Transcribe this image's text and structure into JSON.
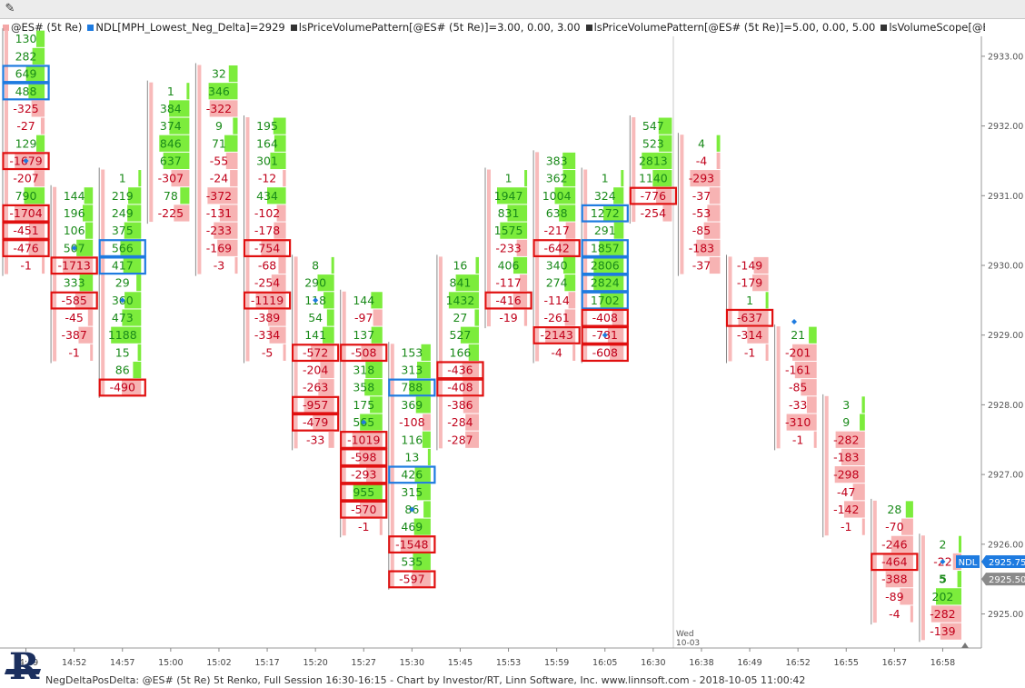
{
  "toolbar": {
    "icon": "pencil-icon"
  },
  "legend": [
    {
      "text": "@ES# (5t Re)",
      "color": "#f4a7a7"
    },
    {
      "text": "NDL[MPH_Lowest_Neg_Delta]=2929",
      "color": "#1e7be0"
    },
    {
      "text": "lsPriceVolumePattern[@ES# (5t Re)]=3.00, 0.00, 3.00",
      "color": "#333333"
    },
    {
      "text": "lsPriceVolumePattern[@ES# (5t Re)]=5.00, 0.00, 5.00",
      "color": "#333333"
    },
    {
      "text": "lsVolumeScope[@ES# (5t Re)]=2931.25, 2928.75, 0, 0",
      "color": "#333333"
    }
  ],
  "footer": "NegDeltaPosDelta: @ES# (5t Re) 5t Renko, Full Session 16:30-16:15 - Chart by Investor/RT, Linn Software, Inc. www.linnsoft.com - 2018-10-05 11:00:42",
  "day_label": {
    "line1": "Wed",
    "line2": "10-03"
  },
  "colors": {
    "pos": "#1a8a1a",
    "neg": "#c0001a",
    "red_box": "#e01010",
    "blue_box": "#1e7be0",
    "green_bar": "#7cec3c",
    "red_bar": "#f7b3b3",
    "marker": "#1e7be0"
  },
  "chart_data": {
    "type": "table",
    "y_range": [
      2924.5,
      2933.25
    ],
    "tick_size": 0.25,
    "y_ticks": [
      2925.0,
      2926.0,
      2927.0,
      2928.0,
      2929.0,
      2930.0,
      2931.0,
      2932.0,
      2933.0
    ],
    "x_labels": [
      "14:49",
      "14:52",
      "14:57",
      "15:00",
      "15:02",
      "15:17",
      "15:20",
      "15:27",
      "15:30",
      "15:45",
      "15:53",
      "15:59",
      "16:05",
      "16:30",
      "16:38",
      "16:49",
      "16:52",
      "16:55",
      "16:57",
      "16:58"
    ],
    "price_badges": [
      {
        "label": "NDL",
        "value": "2925.75"
      },
      {
        "value": "2925.50"
      }
    ],
    "columns": [
      {
        "cells": [
          {
            "p": 2933.25,
            "v": "130"
          },
          {
            "p": 2933.0,
            "v": "282"
          },
          {
            "p": 2932.75,
            "v": "649",
            "box": "blue"
          },
          {
            "p": 2932.5,
            "v": "488",
            "box": "blue"
          },
          {
            "p": 2932.25,
            "v": "-325"
          },
          {
            "p": 2932.0,
            "v": "-27"
          },
          {
            "p": 2931.75,
            "v": "129"
          },
          {
            "p": 2931.5,
            "v": "-1679",
            "box": "red",
            "marker": true
          },
          {
            "p": 2931.25,
            "v": "-207"
          },
          {
            "p": 2931.0,
            "v": "790"
          },
          {
            "p": 2930.75,
            "v": "-1704",
            "box": "red"
          },
          {
            "p": 2930.5,
            "v": "-451",
            "box": "red"
          },
          {
            "p": 2930.25,
            "v": "-476",
            "box": "red"
          },
          {
            "p": 2930.0,
            "v": "-1"
          }
        ]
      },
      {
        "cells": [
          {
            "p": 2931.0,
            "v": "144"
          },
          {
            "p": 2930.75,
            "v": "196"
          },
          {
            "p": 2930.5,
            "v": "106"
          },
          {
            "p": 2930.25,
            "v": "507",
            "marker": true
          },
          {
            "p": 2930.0,
            "v": "-1713",
            "box": "red"
          },
          {
            "p": 2929.75,
            "v": "333"
          },
          {
            "p": 2929.5,
            "v": "-585",
            "box": "red"
          },
          {
            "p": 2929.25,
            "v": "-45"
          },
          {
            "p": 2929.0,
            "v": "-387"
          },
          {
            "p": 2928.75,
            "v": "-1"
          }
        ]
      },
      {
        "cells": [
          {
            "p": 2931.25,
            "v": "1"
          },
          {
            "p": 2931.0,
            "v": "219"
          },
          {
            "p": 2930.75,
            "v": "249"
          },
          {
            "p": 2930.5,
            "v": "375"
          },
          {
            "p": 2930.25,
            "v": "566",
            "box": "blue"
          },
          {
            "p": 2930.0,
            "v": "417",
            "box": "blue"
          },
          {
            "p": 2929.75,
            "v": "29"
          },
          {
            "p": 2929.5,
            "v": "360",
            "marker": true
          },
          {
            "p": 2929.25,
            "v": "473"
          },
          {
            "p": 2929.0,
            "v": "1188"
          },
          {
            "p": 2928.75,
            "v": "15"
          },
          {
            "p": 2928.5,
            "v": "86"
          },
          {
            "p": 2928.25,
            "v": "-490",
            "box": "red"
          }
        ]
      },
      {
        "cells": [
          {
            "p": 2932.5,
            "v": "1"
          },
          {
            "p": 2932.25,
            "v": "384"
          },
          {
            "p": 2932.0,
            "v": "374"
          },
          {
            "p": 2931.75,
            "v": "846"
          },
          {
            "p": 2931.5,
            "v": "637"
          },
          {
            "p": 2931.25,
            "v": "-307"
          },
          {
            "p": 2931.0,
            "v": "78"
          },
          {
            "p": 2930.75,
            "v": "-225"
          }
        ]
      },
      {
        "cells": [
          {
            "p": 2932.75,
            "v": "32"
          },
          {
            "p": 2932.5,
            "v": "346"
          },
          {
            "p": 2932.25,
            "v": "-322"
          },
          {
            "p": 2932.0,
            "v": "9"
          },
          {
            "p": 2931.75,
            "v": "71"
          },
          {
            "p": 2931.5,
            "v": "-55"
          },
          {
            "p": 2931.25,
            "v": "-24"
          },
          {
            "p": 2931.0,
            "v": "-372"
          },
          {
            "p": 2930.75,
            "v": "-131"
          },
          {
            "p": 2930.5,
            "v": "-233"
          },
          {
            "p": 2930.25,
            "v": "-169"
          },
          {
            "p": 2930.0,
            "v": "-3"
          }
        ]
      },
      {
        "cells": [
          {
            "p": 2932.0,
            "v": "195"
          },
          {
            "p": 2931.75,
            "v": "164"
          },
          {
            "p": 2931.5,
            "v": "301"
          },
          {
            "p": 2931.25,
            "v": "-12"
          },
          {
            "p": 2931.0,
            "v": "434"
          },
          {
            "p": 2930.75,
            "v": "-102"
          },
          {
            "p": 2930.5,
            "v": "-178"
          },
          {
            "p": 2930.25,
            "v": "-754",
            "box": "red"
          },
          {
            "p": 2930.0,
            "v": "-68"
          },
          {
            "p": 2929.75,
            "v": "-254"
          },
          {
            "p": 2929.5,
            "v": "-1119",
            "box": "red"
          },
          {
            "p": 2929.25,
            "v": "-389"
          },
          {
            "p": 2929.0,
            "v": "-334"
          },
          {
            "p": 2928.75,
            "v": "-5"
          }
        ]
      },
      {
        "cells": [
          {
            "p": 2930.0,
            "v": "8"
          },
          {
            "p": 2929.75,
            "v": "290"
          },
          {
            "p": 2929.5,
            "v": "118",
            "marker": true
          },
          {
            "p": 2929.25,
            "v": "54"
          },
          {
            "p": 2929.0,
            "v": "141"
          },
          {
            "p": 2928.75,
            "v": "-572",
            "box": "red"
          },
          {
            "p": 2928.5,
            "v": "-204"
          },
          {
            "p": 2928.25,
            "v": "-263"
          },
          {
            "p": 2928.0,
            "v": "-957",
            "box": "red"
          },
          {
            "p": 2927.75,
            "v": "-479",
            "box": "red"
          },
          {
            "p": 2927.5,
            "v": "-33"
          }
        ]
      },
      {
        "cells": [
          {
            "p": 2929.5,
            "v": "144"
          },
          {
            "p": 2929.25,
            "v": "-97"
          },
          {
            "p": 2929.0,
            "v": "137"
          },
          {
            "p": 2928.75,
            "v": "-508",
            "box": "red"
          },
          {
            "p": 2928.5,
            "v": "318"
          },
          {
            "p": 2928.25,
            "v": "358"
          },
          {
            "p": 2928.0,
            "v": "175"
          },
          {
            "p": 2927.75,
            "v": "565",
            "marker": true
          },
          {
            "p": 2927.5,
            "v": "-1019",
            "box": "red"
          },
          {
            "p": 2927.25,
            "v": "-598",
            "box": "red"
          },
          {
            "p": 2927.0,
            "v": "-293",
            "box": "red"
          },
          {
            "p": 2926.75,
            "v": "955",
            "box": "red"
          },
          {
            "p": 2926.5,
            "v": "-570",
            "box": "red"
          },
          {
            "p": 2926.25,
            "v": "-1"
          }
        ]
      },
      {
        "cells": [
          {
            "p": 2928.75,
            "v": "153"
          },
          {
            "p": 2928.5,
            "v": "313"
          },
          {
            "p": 2928.25,
            "v": "788",
            "box": "blue"
          },
          {
            "p": 2928.0,
            "v": "369"
          },
          {
            "p": 2927.75,
            "v": "-108"
          },
          {
            "p": 2927.5,
            "v": "116"
          },
          {
            "p": 2927.25,
            "v": "13"
          },
          {
            "p": 2927.0,
            "v": "426",
            "box": "blue"
          },
          {
            "p": 2926.75,
            "v": "315"
          },
          {
            "p": 2926.5,
            "v": "86",
            "marker": true
          },
          {
            "p": 2926.25,
            "v": "469"
          },
          {
            "p": 2926.0,
            "v": "-1548",
            "box": "red"
          },
          {
            "p": 2925.75,
            "v": "535"
          },
          {
            "p": 2925.5,
            "v": "-597",
            "box": "red"
          }
        ]
      },
      {
        "cells": [
          {
            "p": 2930.0,
            "v": "16"
          },
          {
            "p": 2929.75,
            "v": "841"
          },
          {
            "p": 2929.5,
            "v": "1432"
          },
          {
            "p": 2929.25,
            "v": "27"
          },
          {
            "p": 2929.0,
            "v": "527"
          },
          {
            "p": 2928.75,
            "v": "166"
          },
          {
            "p": 2928.5,
            "v": "-436",
            "box": "red"
          },
          {
            "p": 2928.25,
            "v": "-408",
            "box": "red"
          },
          {
            "p": 2928.0,
            "v": "-386"
          },
          {
            "p": 2927.75,
            "v": "-284"
          },
          {
            "p": 2927.5,
            "v": "-287"
          }
        ]
      },
      {
        "cells": [
          {
            "p": 2931.25,
            "v": "1"
          },
          {
            "p": 2931.0,
            "v": "1947"
          },
          {
            "p": 2930.75,
            "v": "831"
          },
          {
            "p": 2930.5,
            "v": "1575"
          },
          {
            "p": 2930.25,
            "v": "-233"
          },
          {
            "p": 2930.0,
            "v": "406"
          },
          {
            "p": 2929.75,
            "v": "-117"
          },
          {
            "p": 2929.5,
            "v": "-416",
            "box": "red"
          },
          {
            "p": 2929.25,
            "v": "-19"
          }
        ]
      },
      {
        "cells": [
          {
            "p": 2931.5,
            "v": "383"
          },
          {
            "p": 2931.25,
            "v": "362"
          },
          {
            "p": 2931.0,
            "v": "1004"
          },
          {
            "p": 2930.75,
            "v": "638"
          },
          {
            "p": 2930.5,
            "v": "-217"
          },
          {
            "p": 2930.25,
            "v": "-642",
            "box": "red"
          },
          {
            "p": 2930.0,
            "v": "340"
          },
          {
            "p": 2929.75,
            "v": "274"
          },
          {
            "p": 2929.5,
            "v": "-114"
          },
          {
            "p": 2929.25,
            "v": "-261"
          },
          {
            "p": 2929.0,
            "v": "-2143",
            "box": "red"
          },
          {
            "p": 2928.75,
            "v": "-4"
          }
        ]
      },
      {
        "cells": [
          {
            "p": 2931.25,
            "v": "1"
          },
          {
            "p": 2931.0,
            "v": "324"
          },
          {
            "p": 2930.75,
            "v": "1272",
            "box": "blue"
          },
          {
            "p": 2930.5,
            "v": "291"
          },
          {
            "p": 2930.25,
            "v": "1857",
            "box": "blue"
          },
          {
            "p": 2930.0,
            "v": "2806",
            "box": "blue"
          },
          {
            "p": 2929.75,
            "v": "2824",
            "box": "blue"
          },
          {
            "p": 2929.5,
            "v": "1702",
            "box": "blue"
          },
          {
            "p": 2929.25,
            "v": "-408",
            "box": "red"
          },
          {
            "p": 2929.0,
            "v": "-781",
            "box": "red",
            "marker": true
          },
          {
            "p": 2928.75,
            "v": "-608",
            "box": "red"
          }
        ]
      },
      {
        "cells": [
          {
            "p": 2932.0,
            "v": "547"
          },
          {
            "p": 2931.75,
            "v": "523"
          },
          {
            "p": 2931.5,
            "v": "2813"
          },
          {
            "p": 2931.25,
            "v": "1140"
          },
          {
            "p": 2931.0,
            "v": "-776",
            "box": "red"
          },
          {
            "p": 2930.75,
            "v": "-254"
          }
        ]
      },
      {
        "cells": [
          {
            "p": 2931.75,
            "v": "4"
          },
          {
            "p": 2931.5,
            "v": "-4"
          },
          {
            "p": 2931.25,
            "v": "-293"
          },
          {
            "p": 2931.0,
            "v": "-37"
          },
          {
            "p": 2930.75,
            "v": "-53"
          },
          {
            "p": 2930.5,
            "v": "-85"
          },
          {
            "p": 2930.25,
            "v": "-183"
          },
          {
            "p": 2930.0,
            "v": "-37"
          }
        ]
      },
      {
        "cells": [
          {
            "p": 2930.0,
            "v": "-149"
          },
          {
            "p": 2929.75,
            "v": "-179"
          },
          {
            "p": 2929.5,
            "v": "1"
          },
          {
            "p": 2929.25,
            "v": "-637",
            "box": "red"
          },
          {
            "p": 2929.0,
            "v": "-314"
          },
          {
            "p": 2928.75,
            "v": "-1"
          }
        ]
      },
      {
        "cells": [
          {
            "p": 2929.0,
            "v": "21"
          },
          {
            "p": 2928.75,
            "v": "-201"
          },
          {
            "p": 2928.5,
            "v": "-161"
          },
          {
            "p": 2928.25,
            "v": "-85"
          },
          {
            "p": 2928.0,
            "v": "-33"
          },
          {
            "p": 2927.75,
            "v": "-310"
          },
          {
            "p": 2927.5,
            "v": "-1"
          }
        ]
      },
      {
        "cells": [
          {
            "p": 2928.0,
            "v": "3"
          },
          {
            "p": 2927.75,
            "v": "9"
          },
          {
            "p": 2927.5,
            "v": "-282"
          },
          {
            "p": 2927.25,
            "v": "-183"
          },
          {
            "p": 2927.0,
            "v": "-298"
          },
          {
            "p": 2926.75,
            "v": "-47"
          },
          {
            "p": 2926.5,
            "v": "-142"
          },
          {
            "p": 2926.25,
            "v": "-1"
          }
        ]
      },
      {
        "cells": [
          {
            "p": 2926.5,
            "v": "28"
          },
          {
            "p": 2926.25,
            "v": "-70"
          },
          {
            "p": 2926.0,
            "v": "-246"
          },
          {
            "p": 2925.75,
            "v": "-464",
            "box": "red"
          },
          {
            "p": 2925.5,
            "v": "-388"
          },
          {
            "p": 2925.25,
            "v": "-89"
          },
          {
            "p": 2925.0,
            "v": "-4"
          }
        ]
      },
      {
        "cells": [
          {
            "p": 2926.0,
            "v": "2"
          },
          {
            "p": 2925.75,
            "v": "-22",
            "marker": true
          },
          {
            "p": 2925.5,
            "v": "5",
            "bold": true
          },
          {
            "p": 2925.25,
            "v": "202"
          },
          {
            "p": 2925.0,
            "v": "-282"
          },
          {
            "p": 2924.75,
            "v": "-139"
          }
        ]
      }
    ]
  }
}
